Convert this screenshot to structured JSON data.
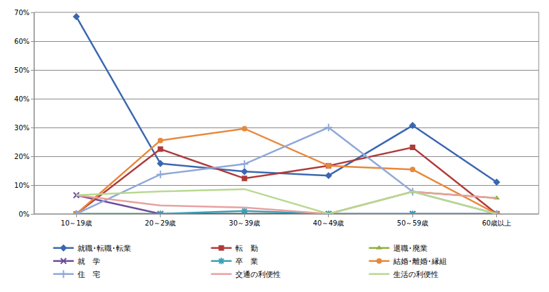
{
  "chart_data": {
    "type": "line",
    "categories": [
      "10～19歳",
      "20～29歳",
      "30～39歳",
      "40～49歳",
      "50～59歳",
      "60歳以上"
    ],
    "ylim": [
      0,
      70
    ],
    "yticks": [
      {
        "value": 0,
        "label": "0%"
      },
      {
        "value": 10,
        "label": "10%"
      },
      {
        "value": 20,
        "label": "20%"
      },
      {
        "value": 30,
        "label": "30%"
      },
      {
        "value": 40,
        "label": "40%"
      },
      {
        "value": 50,
        "label": "50%"
      },
      {
        "value": 60,
        "label": "60%"
      },
      {
        "value": 70,
        "label": "70%"
      }
    ],
    "grid": true,
    "legend": "bottom",
    "series": [
      {
        "name": "就職･転職･転業",
        "color": "#3a67b0",
        "marker": "diamond",
        "values": [
          68.5,
          17.5,
          14.7,
          13.3,
          30.7,
          11.0
        ]
      },
      {
        "name": "転　勤",
        "color": "#b03a3a",
        "marker": "square",
        "values": [
          0,
          22.5,
          12.3,
          16.7,
          23.1,
          0
        ]
      },
      {
        "name": "退職･廃業",
        "color": "#8fb040",
        "marker": "triangle",
        "values": [
          0,
          0,
          0,
          0,
          7.7,
          5.5
        ]
      },
      {
        "name": "就　学",
        "color": "#6b4c9a",
        "marker": "x",
        "values": [
          6.5,
          0,
          0,
          0,
          0,
          0
        ]
      },
      {
        "name": "卒　業",
        "color": "#3aa0b8",
        "marker": "asterisk",
        "values": [
          0,
          0,
          1.0,
          0,
          0,
          0
        ]
      },
      {
        "name": "結婚･離婚･縁組",
        "color": "#e8883a",
        "marker": "circle",
        "values": [
          0,
          25.5,
          29.6,
          16.7,
          15.4,
          0
        ]
      },
      {
        "name": "住　宅",
        "color": "#8fa8d8",
        "marker": "plus",
        "values": [
          0,
          13.7,
          17.3,
          30.0,
          7.7,
          0
        ]
      },
      {
        "name": "交通の利便性",
        "color": "#e8a0a0",
        "marker": "none",
        "values": [
          6.5,
          2.9,
          2.2,
          0,
          7.7,
          5.5
        ]
      },
      {
        "name": "生活の利便性",
        "color": "#b8d890",
        "marker": "none",
        "values": [
          6.5,
          7.8,
          8.6,
          0,
          7.7,
          0
        ]
      }
    ]
  }
}
